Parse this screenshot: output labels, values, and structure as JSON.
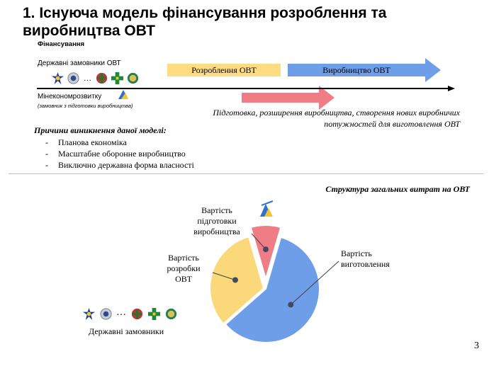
{
  "title": "1. Існуюча модель фінансування розроблення та виробництва ОВТ",
  "financing_label": "Фінансування",
  "customers_label": "Державні замовники ОВТ",
  "ellipsis": "…",
  "ministry_label": "Мінекономрозвитку",
  "ministry_note": "(замовник з підготовки виробництва)",
  "timeline": {
    "development_label": "Розроблення ОВТ",
    "production_label": "Виробництво ОВТ",
    "preparation_caption_line1": "Підготовка, розширення виробництва, створення нових виробничих",
    "preparation_caption_line2": "потужностей для виготовлення ОВТ"
  },
  "reasons": {
    "heading": "Причини виникнення даної моделі:",
    "items": [
      "Планова економіка",
      "Масштабне оборонне виробництво",
      "Виключно державна форма власності"
    ],
    "bullet": "-"
  },
  "pie": {
    "title": "Структура загальних витрат на ОВТ",
    "labels": {
      "preparation": [
        "Вартість",
        "підготовки",
        "виробництва"
      ],
      "development": [
        "Вартість",
        "розробки",
        "ОВТ"
      ],
      "manufacturing": [
        "Вартість",
        "виготовлення"
      ]
    }
  },
  "state_customers_label": "Державні замовники",
  "page_number": "3",
  "colors": {
    "development": "#fddc84",
    "production": "#6f9ee8",
    "preparation": "#f07c86",
    "pie_dev": "#fbd97a",
    "pie_mfg": "#6f9ee8",
    "pie_prep": "#f07c86"
  },
  "chart_data": {
    "type": "pie",
    "title": "Структура загальних витрат на ОВТ",
    "categories": [
      "Вартість підготовки виробництва",
      "Вартість розробки ОВТ",
      "Вартість виготовлення"
    ],
    "values": [
      9,
      32,
      59
    ]
  },
  "icons": [
    "emblem-sbu",
    "emblem-police",
    "emblem-army",
    "emblem-border-guard",
    "emblem-intelligence",
    "ministry-logo-icon",
    "timeline-arrow-icon"
  ]
}
